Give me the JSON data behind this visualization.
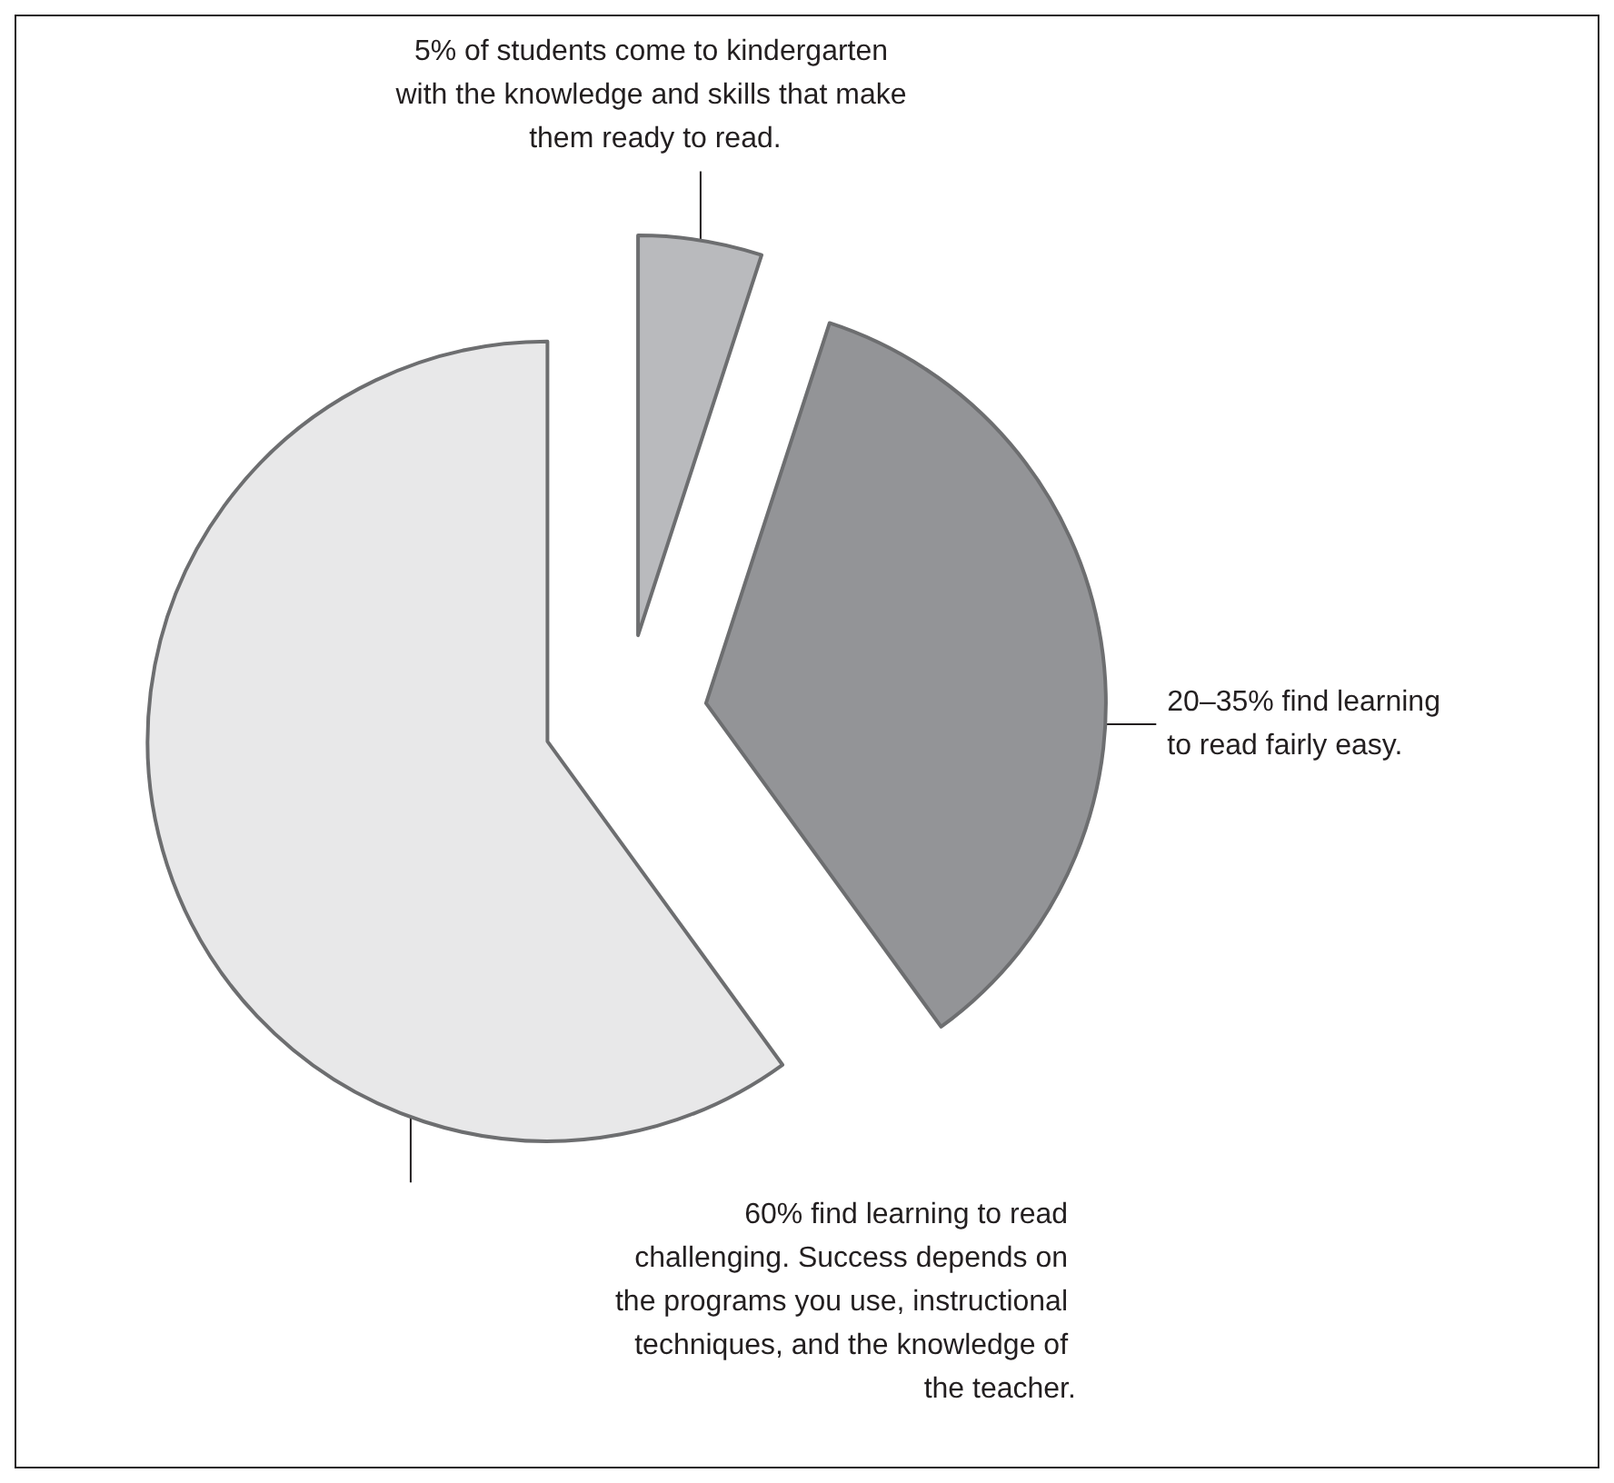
{
  "chart_data": {
    "type": "pie",
    "categories": [
      "5% of students come to kindergarten with the knowledge and skills that make them ready to read.",
      "20–35% find learning to read fairly easy.",
      "60% find learning to read challenging. Success depends on the programs you use, instructional techniques, and the knowledge of the teacher."
    ],
    "values": [
      5,
      35,
      60
    ],
    "colors": [
      "#b9babd",
      "#939497",
      "#e8e8e9"
    ],
    "legend": false
  }
}
